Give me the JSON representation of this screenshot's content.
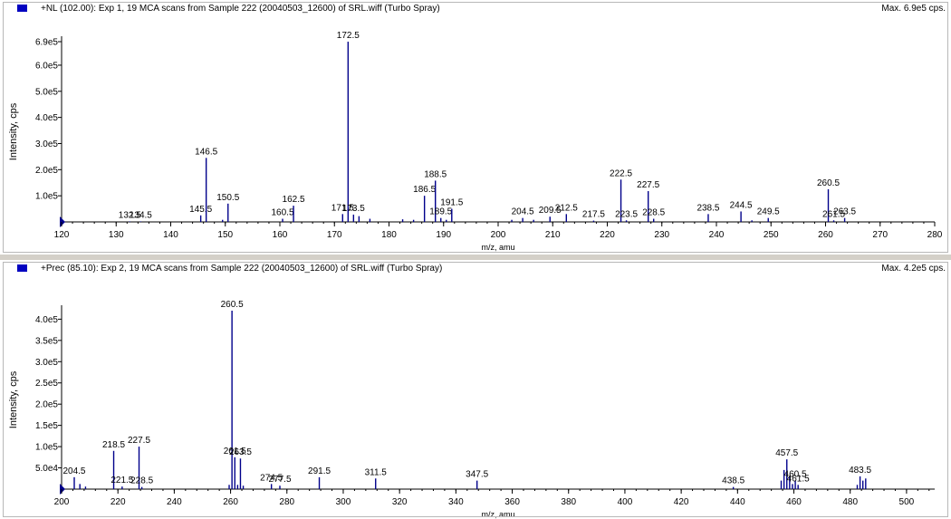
{
  "panels": [
    {
      "title": "+NL (102.00): Exp 1, 19 MCA scans from Sample 222 (20040503_12600) of SRL.wiff (Turbo Spray)",
      "max_label": "Max. 6.9e5 cps.",
      "marker_color": "#0000c0"
    },
    {
      "title": "+Prec (85.10): Exp 2, 19 MCA scans from Sample 222 (20040503_12600) of SRL.wiff (Turbo Spray)",
      "max_label": "Max. 4.2e5 cps.",
      "marker_color": "#0000c0"
    }
  ],
  "chart_data": [
    {
      "type": "bar",
      "xlabel": "m/z, amu",
      "ylabel": "Intensity, cps",
      "xlim": [
        120,
        280
      ],
      "ylim": [
        0,
        690000
      ],
      "xticks": [
        "120",
        "130",
        "140",
        "150",
        "160",
        "170",
        "180",
        "190",
        "200",
        "210",
        "220",
        "230",
        "240",
        "250",
        "260",
        "270",
        "280"
      ],
      "yticks": [
        "1.0e5",
        "2.0e5",
        "3.0e5",
        "4.0e5",
        "5.0e5",
        "6.0e5",
        "6.9e5"
      ],
      "ytick_values": [
        100000,
        200000,
        300000,
        400000,
        500000,
        600000,
        690000
      ],
      "color": "#00008b",
      "peaks": [
        {
          "mz": 132.5,
          "intensity": 2000,
          "label": "132.5"
        },
        {
          "mz": 134.5,
          "intensity": 2000,
          "label": "134.5"
        },
        {
          "mz": 145.5,
          "intensity": 25000,
          "label": "145.5"
        },
        {
          "mz": 146.5,
          "intensity": 245000,
          "label": "146.5"
        },
        {
          "mz": 149.5,
          "intensity": 8000,
          "label": ""
        },
        {
          "mz": 150.5,
          "intensity": 70000,
          "label": "150.5"
        },
        {
          "mz": 160.5,
          "intensity": 12000,
          "label": "160.5"
        },
        {
          "mz": 162.5,
          "intensity": 62000,
          "label": "162.5"
        },
        {
          "mz": 171.5,
          "intensity": 30000,
          "label": "171.5"
        },
        {
          "mz": 172.5,
          "intensity": 690000,
          "label": "172.5"
        },
        {
          "mz": 173.5,
          "intensity": 28000,
          "label": "173.5"
        },
        {
          "mz": 174.5,
          "intensity": 22000,
          "label": ""
        },
        {
          "mz": 176.5,
          "intensity": 12000,
          "label": ""
        },
        {
          "mz": 182.5,
          "intensity": 10000,
          "label": ""
        },
        {
          "mz": 184.5,
          "intensity": 8000,
          "label": ""
        },
        {
          "mz": 186.5,
          "intensity": 100000,
          "label": "186.5"
        },
        {
          "mz": 188.5,
          "intensity": 158000,
          "label": "188.5"
        },
        {
          "mz": 189.5,
          "intensity": 15000,
          "label": "189.5"
        },
        {
          "mz": 190.5,
          "intensity": 8000,
          "label": ""
        },
        {
          "mz": 191.5,
          "intensity": 50000,
          "label": "191.5"
        },
        {
          "mz": 202.5,
          "intensity": 8000,
          "label": ""
        },
        {
          "mz": 204.5,
          "intensity": 15000,
          "label": "204.5"
        },
        {
          "mz": 206.5,
          "intensity": 8000,
          "label": ""
        },
        {
          "mz": 209.5,
          "intensity": 20000,
          "label": "209.5"
        },
        {
          "mz": 212.5,
          "intensity": 30000,
          "label": "212.5"
        },
        {
          "mz": 217.5,
          "intensity": 5000,
          "label": "217.5"
        },
        {
          "mz": 222.5,
          "intensity": 162000,
          "label": "222.5"
        },
        {
          "mz": 223.5,
          "intensity": 6000,
          "label": "223.5"
        },
        {
          "mz": 227.5,
          "intensity": 118000,
          "label": "227.5"
        },
        {
          "mz": 228.5,
          "intensity": 12000,
          "label": "228.5"
        },
        {
          "mz": 238.5,
          "intensity": 30000,
          "label": "238.5"
        },
        {
          "mz": 244.5,
          "intensity": 40000,
          "label": "244.5"
        },
        {
          "mz": 246.5,
          "intensity": 6000,
          "label": ""
        },
        {
          "mz": 249.5,
          "intensity": 15000,
          "label": "249.5"
        },
        {
          "mz": 260.5,
          "intensity": 125000,
          "label": "260.5"
        },
        {
          "mz": 261.5,
          "intensity": 6000,
          "label": "261.5"
        },
        {
          "mz": 263.5,
          "intensity": 15000,
          "label": "263.5"
        }
      ]
    },
    {
      "type": "bar",
      "xlabel": "m/z, amu",
      "ylabel": "Intensity, cps",
      "xlim": [
        200,
        510
      ],
      "ylim": [
        0,
        420000
      ],
      "xticks": [
        "200",
        "220",
        "240",
        "260",
        "280",
        "300",
        "320",
        "340",
        "360",
        "380",
        "400",
        "420",
        "440",
        "460",
        "480",
        "500"
      ],
      "yticks": [
        "5.0e4",
        "1.0e5",
        "1.5e5",
        "2.0e5",
        "2.5e5",
        "3.0e5",
        "3.5e5",
        "4.0e5"
      ],
      "ytick_values": [
        50000,
        100000,
        150000,
        200000,
        250000,
        300000,
        350000,
        400000
      ],
      "color": "#00008b",
      "peaks": [
        {
          "mz": 204.5,
          "intensity": 28000,
          "label": "204.5"
        },
        {
          "mz": 206.5,
          "intensity": 12000,
          "label": ""
        },
        {
          "mz": 208.5,
          "intensity": 6000,
          "label": ""
        },
        {
          "mz": 218.5,
          "intensity": 90000,
          "label": "218.5"
        },
        {
          "mz": 221.5,
          "intensity": 6000,
          "label": "221.5"
        },
        {
          "mz": 227.5,
          "intensity": 100000,
          "label": "227.5"
        },
        {
          "mz": 228.5,
          "intensity": 5000,
          "label": "228.5"
        },
        {
          "mz": 259.5,
          "intensity": 10000,
          "label": ""
        },
        {
          "mz": 260.5,
          "intensity": 420000,
          "label": "260.5"
        },
        {
          "mz": 261.5,
          "intensity": 75000,
          "label": "261.5"
        },
        {
          "mz": 262.5,
          "intensity": 10000,
          "label": ""
        },
        {
          "mz": 263.5,
          "intensity": 72000,
          "label": "263.5"
        },
        {
          "mz": 264.5,
          "intensity": 8000,
          "label": ""
        },
        {
          "mz": 274.5,
          "intensity": 12000,
          "label": "274.5"
        },
        {
          "mz": 277.5,
          "intensity": 8000,
          "label": "277.5"
        },
        {
          "mz": 291.5,
          "intensity": 28000,
          "label": "291.5"
        },
        {
          "mz": 311.5,
          "intensity": 25000,
          "label": "311.5"
        },
        {
          "mz": 347.5,
          "intensity": 20000,
          "label": "347.5"
        },
        {
          "mz": 438.5,
          "intensity": 5000,
          "label": "438.5"
        },
        {
          "mz": 455.5,
          "intensity": 20000,
          "label": ""
        },
        {
          "mz": 456.5,
          "intensity": 45000,
          "label": ""
        },
        {
          "mz": 457.5,
          "intensity": 70000,
          "label": "457.5"
        },
        {
          "mz": 458.5,
          "intensity": 30000,
          "label": ""
        },
        {
          "mz": 459.5,
          "intensity": 12000,
          "label": ""
        },
        {
          "mz": 460.5,
          "intensity": 20000,
          "label": "460.5"
        },
        {
          "mz": 461.5,
          "intensity": 10000,
          "label": "461.5"
        },
        {
          "mz": 482.5,
          "intensity": 10000,
          "label": ""
        },
        {
          "mz": 483.5,
          "intensity": 30000,
          "label": "483.5"
        },
        {
          "mz": 484.5,
          "intensity": 20000,
          "label": ""
        },
        {
          "mz": 485.5,
          "intensity": 25000,
          "label": ""
        }
      ]
    }
  ]
}
